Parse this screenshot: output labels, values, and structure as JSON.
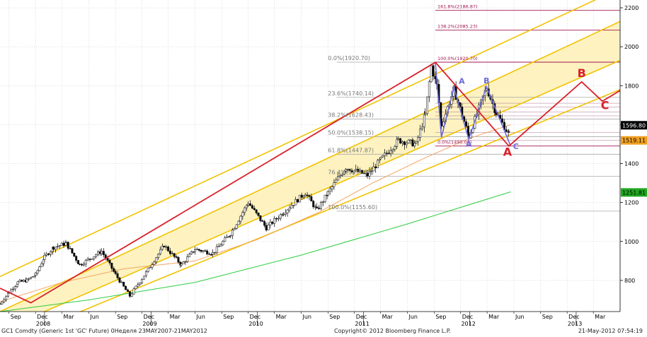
{
  "chart_data": {
    "type": "candlestick",
    "ylim": [
      640,
      2240
    ],
    "y_ticks": [
      800,
      1000,
      1200,
      1400,
      1600,
      1800,
      2000,
      2200
    ],
    "x_range": [
      "2007-08-01",
      "2013-06-01"
    ],
    "x_month_labels": [
      {
        "date": "2007-09-01",
        "label": "Sep"
      },
      {
        "date": "2007-12-01",
        "label": "Dec"
      },
      {
        "date": "2008-03-01",
        "label": "Mar"
      },
      {
        "date": "2008-06-01",
        "label": "Jun"
      },
      {
        "date": "2008-09-01",
        "label": "Sep"
      },
      {
        "date": "2008-12-01",
        "label": "Dec"
      },
      {
        "date": "2009-03-01",
        "label": "Mar"
      },
      {
        "date": "2009-06-01",
        "label": "Jun"
      },
      {
        "date": "2009-09-01",
        "label": "Sep"
      },
      {
        "date": "2009-12-01",
        "label": "Dec"
      },
      {
        "date": "2010-03-01",
        "label": "Mar"
      },
      {
        "date": "2010-06-01",
        "label": "Jun"
      },
      {
        "date": "2010-09-01",
        "label": "Sep"
      },
      {
        "date": "2010-12-01",
        "label": "Dec"
      },
      {
        "date": "2011-03-01",
        "label": "Mar"
      },
      {
        "date": "2011-06-01",
        "label": "Jun"
      },
      {
        "date": "2011-09-01",
        "label": "Sep"
      },
      {
        "date": "2011-12-01",
        "label": "Dec"
      },
      {
        "date": "2012-03-01",
        "label": "Mar"
      },
      {
        "date": "2012-06-01",
        "label": "Jun"
      },
      {
        "date": "2012-09-01",
        "label": "Sep"
      },
      {
        "date": "2012-12-01",
        "label": "Dec"
      },
      {
        "date": "2013-03-01",
        "label": "Mar"
      }
    ],
    "x_year_labels": [
      {
        "date": "2008-01-01",
        "label": "2008"
      },
      {
        "date": "2009-01-01",
        "label": "2009"
      },
      {
        "date": "2010-01-01",
        "label": "2010"
      },
      {
        "date": "2011-01-01",
        "label": "2011"
      },
      {
        "date": "2012-01-01",
        "label": "2012"
      },
      {
        "date": "2013-01-01",
        "label": "2013"
      }
    ],
    "price_series": [
      {
        "date": "2007-08-01",
        "value": 680
      },
      {
        "date": "2007-09-01",
        "value": 740
      },
      {
        "date": "2007-10-01",
        "value": 790
      },
      {
        "date": "2007-11-01",
        "value": 800
      },
      {
        "date": "2007-12-01",
        "value": 830
      },
      {
        "date": "2008-01-01",
        "value": 920
      },
      {
        "date": "2008-02-01",
        "value": 970
      },
      {
        "date": "2008-03-15",
        "value": 990
      },
      {
        "date": "2008-05-01",
        "value": 880
      },
      {
        "date": "2008-07-15",
        "value": 950
      },
      {
        "date": "2008-09-01",
        "value": 830
      },
      {
        "date": "2008-10-20",
        "value": 720
      },
      {
        "date": "2008-12-01",
        "value": 810
      },
      {
        "date": "2009-02-15",
        "value": 980
      },
      {
        "date": "2009-04-15",
        "value": 880
      },
      {
        "date": "2009-06-01",
        "value": 960
      },
      {
        "date": "2009-08-01",
        "value": 940
      },
      {
        "date": "2009-10-01",
        "value": 1040
      },
      {
        "date": "2009-12-01",
        "value": 1200
      },
      {
        "date": "2010-02-01",
        "value": 1070
      },
      {
        "date": "2010-04-01",
        "value": 1150
      },
      {
        "date": "2010-06-15",
        "value": 1250
      },
      {
        "date": "2010-07-25",
        "value": 1160
      },
      {
        "date": "2010-09-01",
        "value": 1250
      },
      {
        "date": "2010-11-01",
        "value": 1380
      },
      {
        "date": "2011-01-15",
        "value": 1340
      },
      {
        "date": "2011-03-01",
        "value": 1420
      },
      {
        "date": "2011-05-01",
        "value": 1520
      },
      {
        "date": "2011-07-01",
        "value": 1500
      },
      {
        "date": "2011-08-01",
        "value": 1650
      },
      {
        "date": "2011-08-22",
        "value": 1900
      },
      {
        "date": "2011-09-10",
        "value": 1800
      },
      {
        "date": "2011-09-26",
        "value": 1600
      },
      {
        "date": "2011-11-08",
        "value": 1780
      },
      {
        "date": "2011-12-29",
        "value": 1540
      },
      {
        "date": "2012-02-28",
        "value": 1790
      },
      {
        "date": "2012-04-01",
        "value": 1660
      },
      {
        "date": "2012-05-15",
        "value": 1550
      },
      {
        "date": "2012-05-21",
        "value": 1597
      }
    ],
    "moving_averages": [
      {
        "color": "#f4a460",
        "points": [
          {
            "date": "2007-08-01",
            "value": 690
          },
          {
            "date": "2008-03-01",
            "value": 790
          },
          {
            "date": "2008-10-01",
            "value": 860
          },
          {
            "date": "2009-06-01",
            "value": 900
          },
          {
            "date": "2010-01-01",
            "value": 1010
          },
          {
            "date": "2010-08-01",
            "value": 1150
          },
          {
            "date": "2011-02-01",
            "value": 1300
          },
          {
            "date": "2011-08-01",
            "value": 1430
          },
          {
            "date": "2012-01-01",
            "value": 1530
          },
          {
            "date": "2012-05-21",
            "value": 1600
          }
        ]
      },
      {
        "color": "#2ecc40",
        "points": [
          {
            "date": "2007-08-01",
            "value": 640
          },
          {
            "date": "2008-06-01",
            "value": 700
          },
          {
            "date": "2009-06-01",
            "value": 790
          },
          {
            "date": "2010-06-01",
            "value": 930
          },
          {
            "date": "2011-06-01",
            "value": 1090
          },
          {
            "date": "2012-05-21",
            "value": 1255
          }
        ]
      }
    ],
    "channel_lines": [
      {
        "color": "#f2c200",
        "points": [
          {
            "date": "2007-08-01",
            "value": 820
          },
          {
            "date": "2013-06-01",
            "value": 2300
          }
        ]
      },
      {
        "color": "#f2c200",
        "points": [
          {
            "date": "2007-08-01",
            "value": 640
          },
          {
            "date": "2013-06-01",
            "value": 2130
          }
        ]
      },
      {
        "color": "#f2c200",
        "points": [
          {
            "date": "2007-08-01",
            "value": 540
          },
          {
            "date": "2013-06-01",
            "value": 1930
          }
        ]
      },
      {
        "color": "#f2c200",
        "points": [
          {
            "date": "2007-08-01",
            "value": 470
          },
          {
            "date": "2013-06-01",
            "value": 1780
          }
        ]
      }
    ],
    "channel_fill": {
      "color": "#fdf2c0",
      "upper": [
        {
          "date": "2007-08-01",
          "value": 640
        },
        {
          "date": "2013-06-01",
          "value": 2130
        }
      ],
      "lower": [
        {
          "date": "2007-08-01",
          "value": 540
        },
        {
          "date": "2013-06-01",
          "value": 1930
        }
      ]
    },
    "wave_path": {
      "color": "#d9212b",
      "points": [
        {
          "date": "2007-08-01",
          "value": 760
        },
        {
          "date": "2007-11-15",
          "value": 685
        },
        {
          "date": "2011-09-05",
          "value": 1920
        },
        {
          "date": "2012-05-15",
          "value": 1490
        },
        {
          "date": "2013-01-20",
          "value": 1820
        },
        {
          "date": "2013-04-01",
          "value": 1720
        },
        {
          "date": "2013-06-01",
          "value": 1775
        }
      ]
    },
    "pattern_path": {
      "color": "#6a6ad8",
      "points": [
        {
          "date": "2011-09-05",
          "value": 1920
        },
        {
          "date": "2011-09-26",
          "value": 1535
        },
        {
          "date": "2011-11-08",
          "value": 1790
        },
        {
          "date": "2011-12-29",
          "value": 1525
        },
        {
          "date": "2012-02-28",
          "value": 1795
        },
        {
          "date": "2012-05-21",
          "value": 1490
        }
      ]
    },
    "fib_retracement": [
      {
        "label": "0.0%(1920.70)",
        "value": 1920.7
      },
      {
        "label": "23.6%(1740.14)",
        "value": 1740.14
      },
      {
        "label": "38.2%(1628.43)",
        "value": 1628.43
      },
      {
        "label": "50.0%(1538.15)",
        "value": 1538.15
      },
      {
        "label": "61.8%(1447.87)",
        "value": 1447.87
      },
      {
        "label": "76.4%(1335.17)",
        "value": 1335.17
      },
      {
        "label": "100.0%(1155.60)",
        "value": 1155.6
      }
    ],
    "fib_extension": [
      {
        "label": "161.8%(2186.87)",
        "value": 2186.87
      },
      {
        "label": "138.2%(2085.23)",
        "value": 2085.23
      },
      {
        "label": "100.0%(1920.70)",
        "value": 1920.7
      },
      {
        "label": "0.0%(1490.00)",
        "value": 1490.0
      }
    ],
    "wave_labels": [
      {
        "text": "A",
        "date": "2012-05-10",
        "value": 1440,
        "color": "#d9212b",
        "size": 16
      },
      {
        "text": "B",
        "date": "2013-01-20",
        "value": 1845,
        "color": "#d9212b",
        "size": 16
      },
      {
        "text": "C",
        "date": "2013-04-10",
        "value": 1680,
        "color": "#d9212b",
        "size": 16
      },
      {
        "text": "A",
        "date": "2011-12-29",
        "value": 1488,
        "color": "#6a6ad8",
        "size": 11
      },
      {
        "text": "A",
        "date": "2011-12-05",
        "value": 1810,
        "color": "#6a6ad8",
        "size": 11
      },
      {
        "text": "B",
        "date": "2012-02-28",
        "value": 1812,
        "color": "#6a6ad8",
        "size": 11
      },
      {
        "text": "C",
        "date": "2012-06-08",
        "value": 1475,
        "color": "#6a6ad8",
        "size": 11
      }
    ],
    "price_tags": [
      {
        "label": "1596.80",
        "value": 1596.8,
        "bg": "#000000",
        "fg": "#ffffff"
      },
      {
        "label": "1519.11",
        "value": 1519.11,
        "bg": "#f0a020",
        "fg": "#000000"
      },
      {
        "label": "1251.81",
        "value": 1251.81,
        "bg": "#1fa81f",
        "fg": "#000000"
      }
    ]
  },
  "footer": {
    "left": "GC1 Comdty (Generic 1st 'GC' Future) 0Неделя 23MAY2007-21MAY2012",
    "center": "Copyright© 2012 Bloomberg Finance L.P.",
    "right": "21-May-2012 07:54:19"
  }
}
